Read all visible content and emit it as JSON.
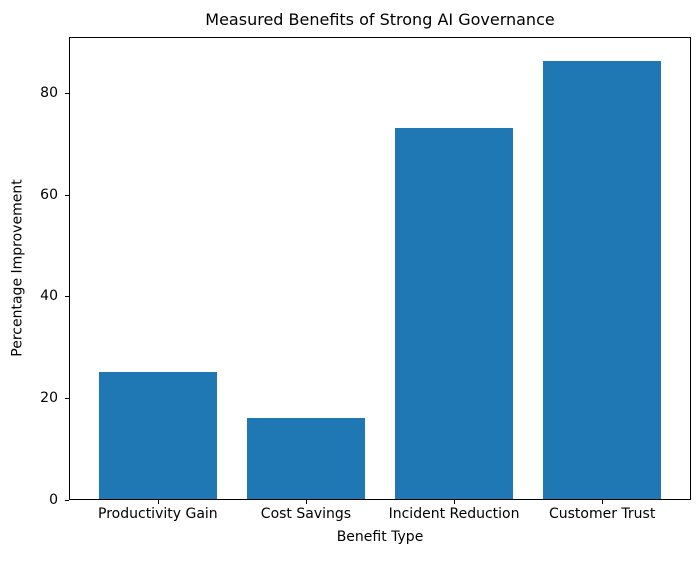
{
  "chart_data": {
    "type": "bar",
    "title": "Measured Benefits of Strong AI Governance",
    "xlabel": "Benefit Type",
    "ylabel": "Percentage Improvement",
    "categories": [
      "Productivity Gain",
      "Cost Savings",
      "Incident Reduction",
      "Customer Trust"
    ],
    "values": [
      25,
      16,
      73,
      86
    ],
    "yticks": [
      0,
      20,
      40,
      60,
      80
    ],
    "ylim": [
      0,
      91
    ],
    "xlim": [
      -0.6,
      3.6
    ],
    "bar_width": 0.8,
    "bar_color": "#1f77b4",
    "axis_color": "#000000",
    "text_color": "#000000",
    "background_color": "#ffffff",
    "grid": false,
    "legend_position": "none"
  }
}
